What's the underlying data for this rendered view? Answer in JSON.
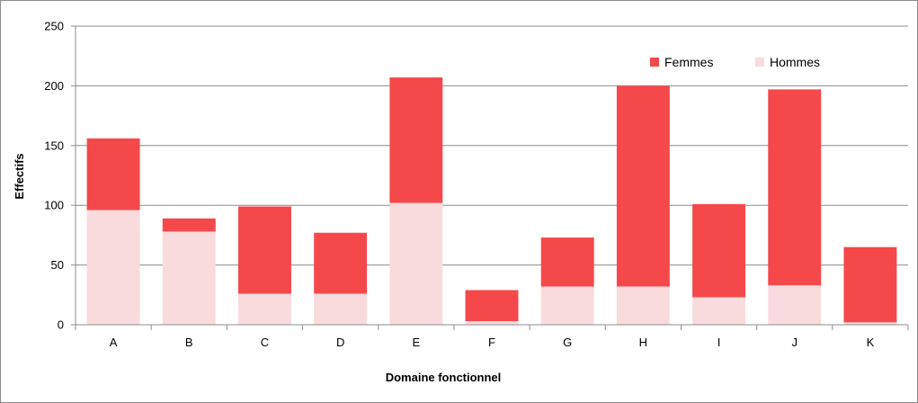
{
  "chart_data": {
    "type": "bar",
    "stacked": true,
    "title": "",
    "xlabel": "Domaine fonctionnel",
    "ylabel": "Effectifs",
    "categories": [
      "A",
      "B",
      "C",
      "D",
      "E",
      "F",
      "G",
      "H",
      "I",
      "J",
      "K"
    ],
    "series": [
      {
        "name": "Hommes",
        "color": "#FADBDD",
        "values": [
          96,
          78,
          26,
          26,
          102,
          3,
          32,
          32,
          23,
          33,
          2
        ]
      },
      {
        "name": "Femmes",
        "color": "#F5484B",
        "values": [
          60,
          11,
          73,
          51,
          105,
          26,
          41,
          168,
          78,
          164,
          63
        ]
      }
    ],
    "ylim": [
      0,
      250
    ],
    "yticks": [
      0,
      50,
      100,
      150,
      200,
      250
    ],
    "grid": true,
    "legend_position": "top-right",
    "legend_order": [
      "Femmes",
      "Hommes"
    ]
  }
}
